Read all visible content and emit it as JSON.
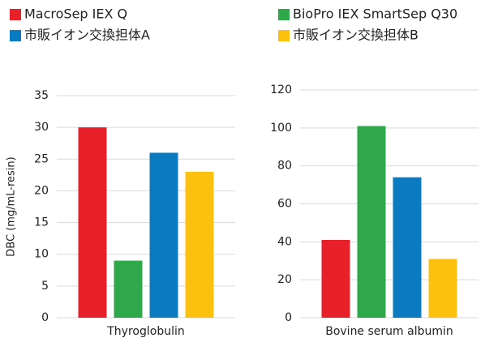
{
  "chart_data": [
    {
      "type": "bar",
      "categories": [
        "Thyroglobulin"
      ],
      "y_label": "DBC (mg/mL-resin)",
      "series": [
        {
          "name": "MacroSep IEX Q",
          "color": "#e8202a",
          "values": [
            30
          ]
        },
        {
          "name": "BioPro IEX SmartSep Q30",
          "color": "#2ea84a",
          "values": [
            9
          ]
        },
        {
          "name": "市販イオン交換担体A",
          "color": "#0a7bc1",
          "values": [
            26
          ]
        },
        {
          "name": "市販イオン交換担体B",
          "color": "#fcc10f",
          "values": [
            23
          ]
        }
      ],
      "ylim": [
        0,
        35
      ],
      "yticks": [
        0,
        5,
        10,
        15,
        20,
        25,
        30,
        35
      ],
      "grid": true
    },
    {
      "type": "bar",
      "categories": [
        "Bovine serum albumin"
      ],
      "series": [
        {
          "name": "MacroSep IEX Q",
          "color": "#e8202a",
          "values": [
            41
          ]
        },
        {
          "name": "BioPro IEX SmartSep Q30",
          "color": "#2ea84a",
          "values": [
            101
          ]
        },
        {
          "name": "市販イオン交換担体A",
          "color": "#0a7bc1",
          "values": [
            74
          ]
        },
        {
          "name": "市販イオン交換担体B",
          "color": "#fcc10f",
          "values": [
            31
          ]
        }
      ],
      "ylim": [
        0,
        120
      ],
      "yticks": [
        0,
        20,
        40,
        60,
        80,
        100,
        120
      ],
      "grid": true
    }
  ]
}
